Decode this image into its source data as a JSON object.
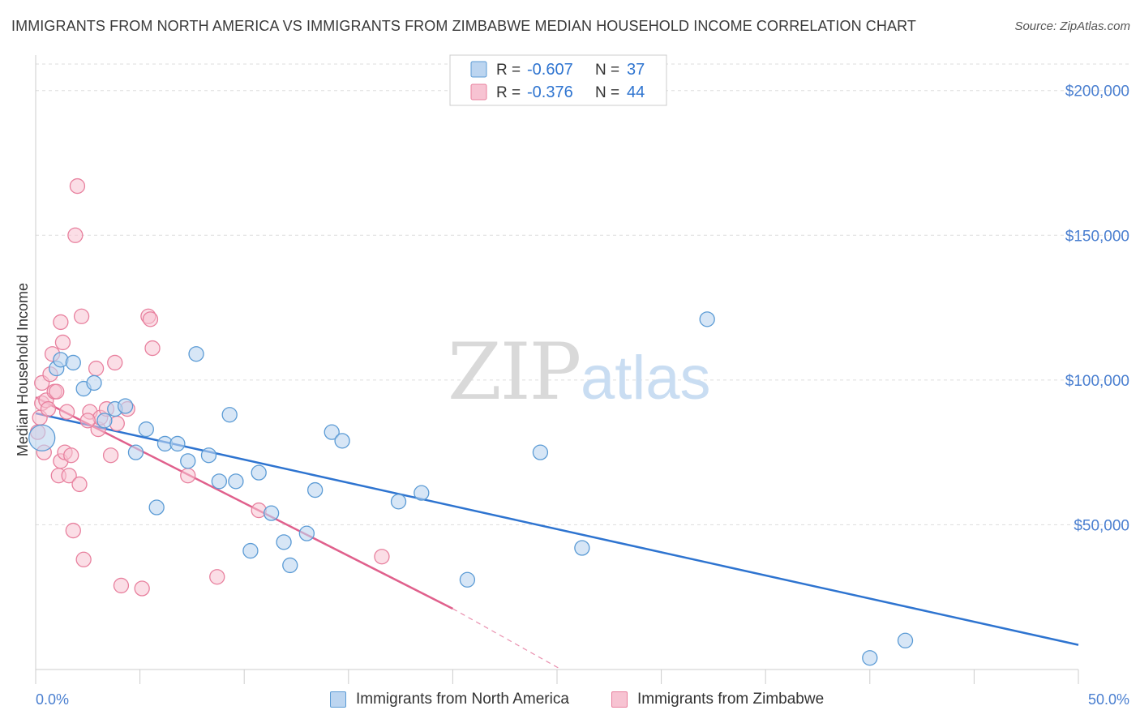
{
  "title": "IMMIGRANTS FROM NORTH AMERICA VS IMMIGRANTS FROM ZIMBABWE MEDIAN HOUSEHOLD INCOME CORRELATION CHART",
  "source": "Source: ZipAtlas.com",
  "watermark": {
    "zip": "ZIP",
    "atlas": "atlas"
  },
  "colors": {
    "blue": "#5b9bd5",
    "blue_fill": "#bcd5f0",
    "blue_line": "#2e74d0",
    "pink": "#e8809e",
    "pink_fill": "#f7c3d2",
    "pink_line": "#e0608c",
    "axis_text": "#4a7fd0"
  },
  "stats": {
    "r_label": "R =",
    "n_label": "N =",
    "rows": [
      {
        "r": "-0.607",
        "n": "37"
      },
      {
        "r": "-0.376",
        "n": "44"
      }
    ]
  },
  "legend": [
    {
      "label": "Immigrants from North America"
    },
    {
      "label": "Immigrants from Zimbabwe"
    }
  ],
  "chart_data": {
    "type": "scatter",
    "title": "IMMIGRANTS FROM NORTH AMERICA VS IMMIGRANTS FROM ZIMBABWE MEDIAN HOUSEHOLD INCOME CORRELATION CHART",
    "xlabel": "",
    "ylabel": "Median Household Income",
    "xlim": [
      0,
      50
    ],
    "ylim": [
      0,
      210000
    ],
    "x_tick_labels": [
      "0.0%",
      "50.0%"
    ],
    "y_ticks": [
      50000,
      100000,
      150000,
      200000
    ],
    "y_tick_labels": [
      "$50,000",
      "$100,000",
      "$150,000",
      "$200,000"
    ],
    "grid": true,
    "legend_position": "bottom",
    "series": [
      {
        "name": "Immigrants from North America",
        "points": [
          [
            0.3,
            80000
          ],
          [
            1.0,
            104000
          ],
          [
            1.2,
            107000
          ],
          [
            1.8,
            106000
          ],
          [
            2.3,
            97000
          ],
          [
            2.8,
            99000
          ],
          [
            3.3,
            86000
          ],
          [
            3.8,
            90000
          ],
          [
            4.3,
            91000
          ],
          [
            4.8,
            75000
          ],
          [
            5.3,
            83000
          ],
          [
            5.8,
            56000
          ],
          [
            6.2,
            78000
          ],
          [
            6.8,
            78000
          ],
          [
            7.3,
            72000
          ],
          [
            7.7,
            109000
          ],
          [
            8.3,
            74000
          ],
          [
            8.8,
            65000
          ],
          [
            9.3,
            88000
          ],
          [
            9.6,
            65000
          ],
          [
            10.3,
            41000
          ],
          [
            10.7,
            68000
          ],
          [
            11.3,
            54000
          ],
          [
            11.9,
            44000
          ],
          [
            12.2,
            36000
          ],
          [
            13.0,
            47000
          ],
          [
            13.4,
            62000
          ],
          [
            14.2,
            82000
          ],
          [
            14.7,
            79000
          ],
          [
            17.4,
            58000
          ],
          [
            18.5,
            61000
          ],
          [
            20.7,
            31000
          ],
          [
            24.2,
            75000
          ],
          [
            26.2,
            42000
          ],
          [
            32.2,
            121000
          ],
          [
            40.0,
            4000
          ],
          [
            41.7,
            10000
          ]
        ],
        "trend": {
          "x0": 0,
          "y0": 88500,
          "x1": 50,
          "y1": 8500
        }
      },
      {
        "name": "Immigrants from Zimbabwe",
        "points": [
          [
            0.1,
            82000
          ],
          [
            0.2,
            87000
          ],
          [
            0.3,
            92000
          ],
          [
            0.3,
            99000
          ],
          [
            0.4,
            75000
          ],
          [
            0.5,
            93000
          ],
          [
            0.6,
            90000
          ],
          [
            0.7,
            102000
          ],
          [
            0.8,
            109000
          ],
          [
            0.9,
            96000
          ],
          [
            1.0,
            96000
          ],
          [
            1.1,
            67000
          ],
          [
            1.2,
            120000
          ],
          [
            1.2,
            72000
          ],
          [
            1.3,
            113000
          ],
          [
            1.4,
            75000
          ],
          [
            1.5,
            89000
          ],
          [
            1.6,
            67000
          ],
          [
            1.7,
            74000
          ],
          [
            1.8,
            48000
          ],
          [
            1.9,
            150000
          ],
          [
            2.0,
            167000
          ],
          [
            2.1,
            64000
          ],
          [
            2.2,
            122000
          ],
          [
            2.3,
            38000
          ],
          [
            2.6,
            89000
          ],
          [
            2.9,
            104000
          ],
          [
            3.0,
            83000
          ],
          [
            3.1,
            87000
          ],
          [
            3.4,
            90000
          ],
          [
            3.6,
            74000
          ],
          [
            3.8,
            106000
          ],
          [
            3.9,
            85000
          ],
          [
            4.1,
            29000
          ],
          [
            4.4,
            90000
          ],
          [
            5.1,
            28000
          ],
          [
            5.4,
            122000
          ],
          [
            5.5,
            121000
          ],
          [
            5.6,
            111000
          ],
          [
            7.3,
            67000
          ],
          [
            8.7,
            32000
          ],
          [
            10.7,
            55000
          ],
          [
            16.6,
            39000
          ],
          [
            2.5,
            86000
          ]
        ],
        "trend": {
          "x0": 0,
          "y0": 94000,
          "x1": 20,
          "y1": 21000
        },
        "trend_dashed": {
          "x0": 20,
          "y0": 21000,
          "x1": 25.2,
          "y1": 0
        }
      }
    ]
  }
}
